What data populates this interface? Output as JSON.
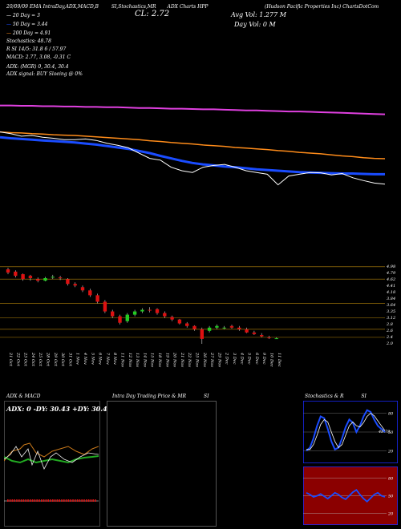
{
  "header": {
    "line1": [
      "20/09/09 EMA IntraDay,ADX,MACD,B",
      "SI,Stochastics,MR",
      "ADX Charts HPP"
    ],
    "company": "(Hudson Pacific Properties Inc) ChartsDotCom",
    "cl": "CL: 2.72",
    "avg_vol": "Avg Vol: 1.277 M",
    "day_vol": "Day Vol: 0   M",
    "ema20": "20 Day = 3",
    "ema50": "50 Day = 3.44",
    "ema200": "200 Day = 4.91",
    "stochastics": "Stochastics: 48.78",
    "r_line": "R                    SI 14/5: 31.8              6 / 57.97",
    "macd": "MACD: 2.77, 3.08, -0.31 C",
    "adx": "ADX:                        (MGR) 0, 30.4, 30.4",
    "adx_signal": "ADX signal:                              BUY Sloeing @ 0%"
  },
  "panels": {
    "adx_title": "ADX  & MACD",
    "adx_values": "ADX: 0   -DY: 30.43  +DY: 30.43",
    "intraday_title": "Intra Day Trading Price  & MR",
    "intraday_suffix": "SI",
    "stoch_title": "Stochastics & R",
    "stoch_suffix": "SI"
  },
  "colors": {
    "ema_magenta": "#e040e0",
    "ema_orange": "#ff8c1a",
    "ema_blue": "#1a4cff",
    "up": "#22cc22",
    "down": "#dd1111",
    "bg": "#000000",
    "rsi_bg": "#8b0000"
  },
  "chart_data": [
    {
      "type": "line",
      "name": "price_ema_overlay",
      "series": [
        {
          "name": "200 Day",
          "values": [
            4.95,
            4.95,
            4.94,
            4.94,
            4.93,
            4.93,
            4.92,
            4.92,
            4.91,
            4.91,
            4.9,
            4.9,
            4.89,
            4.88,
            4.88,
            4.87,
            4.86,
            4.86,
            4.85,
            4.84,
            4.84,
            4.83,
            4.82,
            4.81,
            4.81,
            4.8,
            4.79,
            4.78,
            4.78,
            4.77,
            4.76,
            4.75,
            4.74,
            4.73,
            4.72,
            4.71,
            4.7
          ]
        },
        {
          "name": "50 Day",
          "values": [
            4.2,
            4.18,
            4.17,
            4.15,
            4.14,
            4.12,
            4.11,
            4.1,
            4.08,
            4.06,
            4.04,
            4.02,
            4.0,
            3.98,
            3.95,
            3.93,
            3.9,
            3.88,
            3.86,
            3.83,
            3.81,
            3.79,
            3.76,
            3.74,
            3.72,
            3.7,
            3.67,
            3.65,
            3.62,
            3.6,
            3.58,
            3.55,
            3.52,
            3.5,
            3.47,
            3.45,
            3.44
          ]
        },
        {
          "name": "20 Day",
          "values": [
            4.05,
            4.02,
            4.0,
            3.98,
            3.96,
            3.94,
            3.92,
            3.9,
            3.87,
            3.84,
            3.8,
            3.76,
            3.72,
            3.66,
            3.6,
            3.52,
            3.45,
            3.38,
            3.32,
            3.28,
            3.25,
            3.22,
            3.2,
            3.17,
            3.14,
            3.12,
            3.1,
            3.08,
            3.06,
            3.05,
            3.04,
            3.03,
            3.02,
            3.02,
            3.01,
            3.0,
            3.0
          ]
        },
        {
          "name": "Close",
          "values": [
            4.2,
            4.15,
            4.08,
            4.1,
            4.05,
            4.02,
            3.98,
            3.98,
            4.0,
            3.96,
            3.88,
            3.82,
            3.75,
            3.6,
            3.45,
            3.4,
            3.2,
            3.1,
            3.05,
            3.2,
            3.25,
            3.28,
            3.2,
            3.1,
            3.05,
            3.0,
            2.7,
            2.95,
            3.0,
            3.05,
            3.04,
            2.98,
            3.02,
            2.9,
            2.82,
            2.75,
            2.72
          ]
        }
      ]
    },
    {
      "type": "bar",
      "name": "candles",
      "categories": [
        "21 Oct",
        "22 Oct",
        "23 Oct",
        "24 Oct",
        "25 Oct",
        "28 Oct",
        "29 Oct",
        "30 Oct",
        "31 Oct",
        "1 Nov",
        "4 Nov",
        "5 Nov",
        "6 Nov",
        "7 Nov",
        "8 Nov",
        "11 Nov",
        "12 Nov",
        "13 Nov",
        "14 Nov",
        "15 Nov",
        "18 Nov",
        "19 Nov",
        "20 Nov",
        "21 Nov",
        "22 Nov",
        "25 Nov",
        "26 Nov",
        "27 Nov",
        "29 Nov",
        "2 Dec",
        "3 Dec",
        "4 Dec",
        "5 Dec",
        "6 Dec",
        "9 Dec",
        "10 Dec",
        "11 Dec"
      ],
      "open": [
        4.85,
        4.78,
        4.7,
        4.65,
        4.55,
        4.5,
        4.6,
        4.6,
        4.55,
        4.4,
        4.3,
        4.2,
        4.05,
        3.85,
        3.55,
        3.4,
        3.25,
        3.45,
        3.55,
        3.6,
        3.62,
        3.5,
        3.38,
        3.3,
        3.18,
        3.1,
        3.0,
        2.95,
        3.05,
        3.05,
        3.1,
        3.05,
        3.0,
        2.9,
        2.82,
        2.75,
        2.72
      ],
      "close": [
        4.75,
        4.65,
        4.55,
        4.58,
        4.5,
        4.58,
        4.62,
        4.58,
        4.4,
        4.35,
        4.2,
        4.05,
        3.85,
        3.55,
        3.4,
        3.2,
        3.45,
        3.55,
        3.6,
        3.58,
        3.5,
        3.4,
        3.3,
        3.18,
        3.1,
        3.0,
        2.7,
        3.05,
        3.1,
        3.05,
        3.05,
        3.0,
        2.9,
        2.85,
        2.78,
        2.73,
        2.72
      ],
      "high": [
        4.9,
        4.82,
        4.72,
        4.68,
        4.6,
        4.62,
        4.68,
        4.65,
        4.58,
        4.45,
        4.35,
        4.25,
        4.1,
        3.9,
        3.6,
        3.45,
        3.5,
        3.6,
        3.65,
        3.68,
        3.65,
        3.55,
        3.42,
        3.32,
        3.22,
        3.12,
        3.05,
        3.1,
        3.15,
        3.1,
        3.14,
        3.1,
        3.05,
        2.95,
        2.88,
        2.8,
        2.75
      ],
      "low": [
        4.7,
        4.6,
        4.5,
        4.5,
        4.45,
        4.48,
        4.55,
        4.52,
        4.35,
        4.3,
        4.15,
        4.0,
        3.8,
        3.5,
        3.35,
        3.15,
        3.2,
        3.4,
        3.5,
        3.52,
        3.45,
        3.35,
        3.25,
        3.15,
        3.05,
        2.95,
        2.55,
        2.9,
        3.0,
        3.0,
        3.02,
        2.95,
        2.88,
        2.82,
        2.75,
        2.7,
        2.7
      ],
      "yticks": [
        "4.98",
        "4.79",
        "4.62",
        "4.41",
        "4.18",
        "3.84",
        "3.64",
        "3.35",
        "3.12",
        "2.8",
        "2.6",
        "2.4",
        "2.0"
      ],
      "horizontal_levels": [
        4.93,
        4.55,
        3.8,
        3.35,
        3.0,
        2.75
      ]
    },
    {
      "type": "line",
      "name": "stochastics",
      "yticks": [
        "80",
        "50",
        "20"
      ],
      "label": "48.78",
      "series": [
        {
          "name": "%K",
          "values": [
            20,
            25,
            40,
            60,
            75,
            72,
            55,
            35,
            22,
            25,
            40,
            58,
            70,
            65,
            50,
            60,
            75,
            85,
            82,
            70,
            60,
            55,
            50
          ]
        },
        {
          "name": "%D",
          "values": [
            22,
            22,
            30,
            45,
            62,
            70,
            66,
            50,
            35,
            25,
            30,
            45,
            60,
            66,
            60,
            58,
            65,
            75,
            80,
            76,
            68,
            60,
            52
          ]
        }
      ]
    },
    {
      "type": "line",
      "name": "rsi",
      "yticks": [
        "80",
        "50",
        "20"
      ],
      "series": [
        {
          "name": "RSI",
          "values": [
            55,
            52,
            48,
            50,
            53,
            49,
            45,
            50,
            55,
            52,
            47,
            44,
            50,
            56,
            60,
            52,
            45,
            40,
            46,
            52,
            55,
            50,
            48
          ]
        }
      ]
    }
  ]
}
